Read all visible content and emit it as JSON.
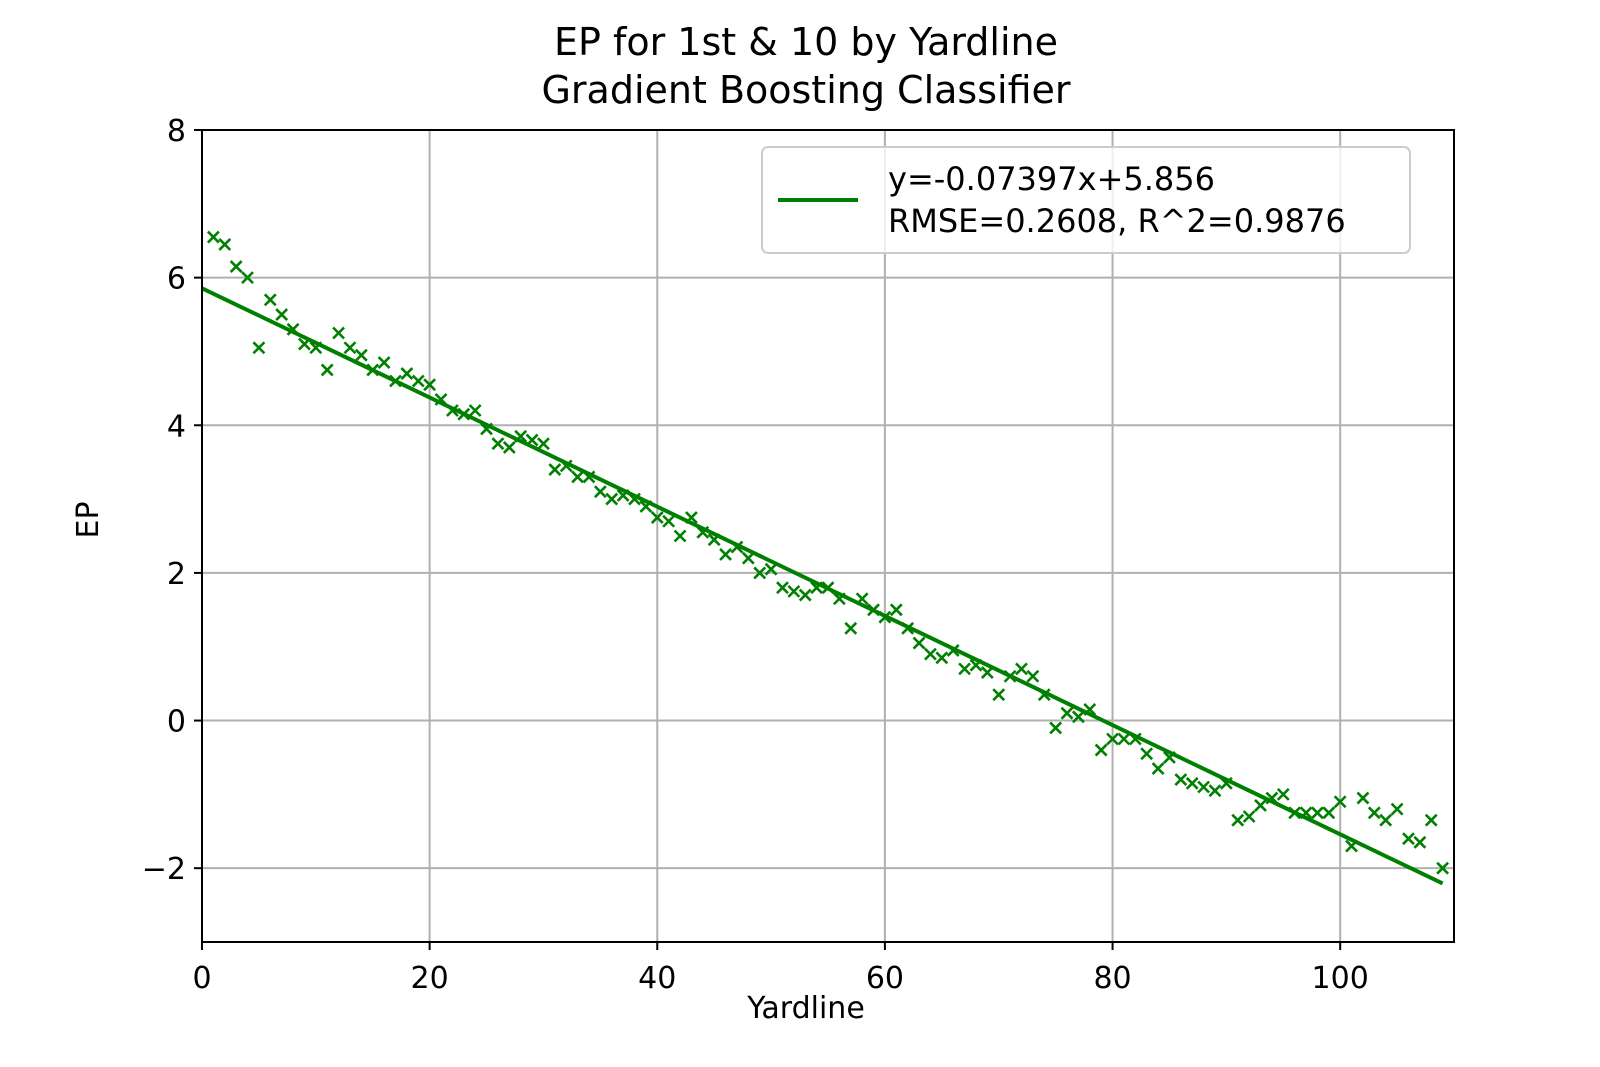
{
  "chart_data": {
    "type": "scatter",
    "title": "EP for 1st & 10 by Yardline",
    "subtitle": "Gradient Boosting Classifier",
    "xlabel": "Yardline",
    "ylabel": "EP",
    "xlim": [
      0,
      110
    ],
    "ylim": [
      -3,
      8
    ],
    "xticks": [
      0,
      20,
      40,
      60,
      80,
      100
    ],
    "xtick_labels": [
      "0",
      "20",
      "40",
      "60",
      "80",
      "100"
    ],
    "yticks": [
      -2,
      0,
      2,
      4,
      6,
      8
    ],
    "ytick_labels": [
      "−2",
      "0",
      "2",
      "4",
      "6",
      "8"
    ],
    "grid": true,
    "legend_position": "top-right",
    "color": "#008000",
    "fit_line": {
      "slope": -0.07397,
      "intercept": 5.856,
      "x_range": [
        0,
        109
      ],
      "legend_lines": [
        "y=-0.07397x+5.856",
        "RMSE=0.2608, R^2=0.9876"
      ]
    },
    "series": [
      {
        "marker": "x",
        "x": [
          1,
          2,
          3,
          4,
          5,
          6,
          7,
          8,
          9,
          10,
          11,
          12,
          13,
          14,
          15,
          16,
          17,
          18,
          19,
          20,
          21,
          22,
          23,
          24,
          25,
          26,
          27,
          28,
          29,
          30,
          31,
          32,
          33,
          34,
          35,
          36,
          37,
          38,
          39,
          40,
          41,
          42,
          43,
          44,
          45,
          46,
          47,
          48,
          49,
          50,
          51,
          52,
          53,
          54,
          55,
          56,
          57,
          58,
          59,
          60,
          61,
          62,
          63,
          64,
          65,
          66,
          67,
          68,
          69,
          70,
          71,
          72,
          73,
          74,
          75,
          76,
          77,
          78,
          79,
          80,
          81,
          82,
          83,
          84,
          85,
          86,
          87,
          88,
          89,
          90,
          91,
          92,
          93,
          94,
          95,
          96,
          97,
          98,
          99,
          100,
          101,
          102,
          103,
          104,
          105,
          106,
          107,
          108,
          109
        ],
        "y": [
          6.55,
          6.45,
          6.15,
          6.0,
          5.05,
          5.7,
          5.5,
          5.3,
          5.1,
          5.05,
          4.75,
          5.25,
          5.05,
          4.95,
          4.75,
          4.85,
          4.6,
          4.7,
          4.6,
          4.55,
          4.35,
          4.2,
          4.15,
          4.2,
          3.95,
          3.75,
          3.7,
          3.85,
          3.8,
          3.75,
          3.4,
          3.45,
          3.3,
          3.3,
          3.1,
          3.0,
          3.05,
          3.0,
          2.9,
          2.75,
          2.7,
          2.5,
          2.75,
          2.55,
          2.45,
          2.25,
          2.35,
          2.2,
          2.0,
          2.05,
          1.8,
          1.75,
          1.7,
          1.8,
          1.8,
          1.65,
          1.25,
          1.65,
          1.5,
          1.4,
          1.5,
          1.25,
          1.05,
          0.9,
          0.85,
          0.95,
          0.7,
          0.75,
          0.65,
          0.35,
          0.6,
          0.7,
          0.6,
          0.35,
          -0.1,
          0.1,
          0.05,
          0.15,
          -0.4,
          -0.25,
          -0.25,
          -0.25,
          -0.45,
          -0.65,
          -0.5,
          -0.8,
          -0.85,
          -0.9,
          -0.95,
          -0.85,
          -1.35,
          -1.3,
          -1.15,
          -1.05,
          -1.0,
          -1.25,
          -1.25,
          -1.25,
          -1.25,
          -1.1,
          -1.7,
          -1.05,
          -1.25,
          -1.35,
          -1.2,
          -1.6,
          -1.65,
          -1.35,
          -2.0
        ]
      }
    ]
  }
}
